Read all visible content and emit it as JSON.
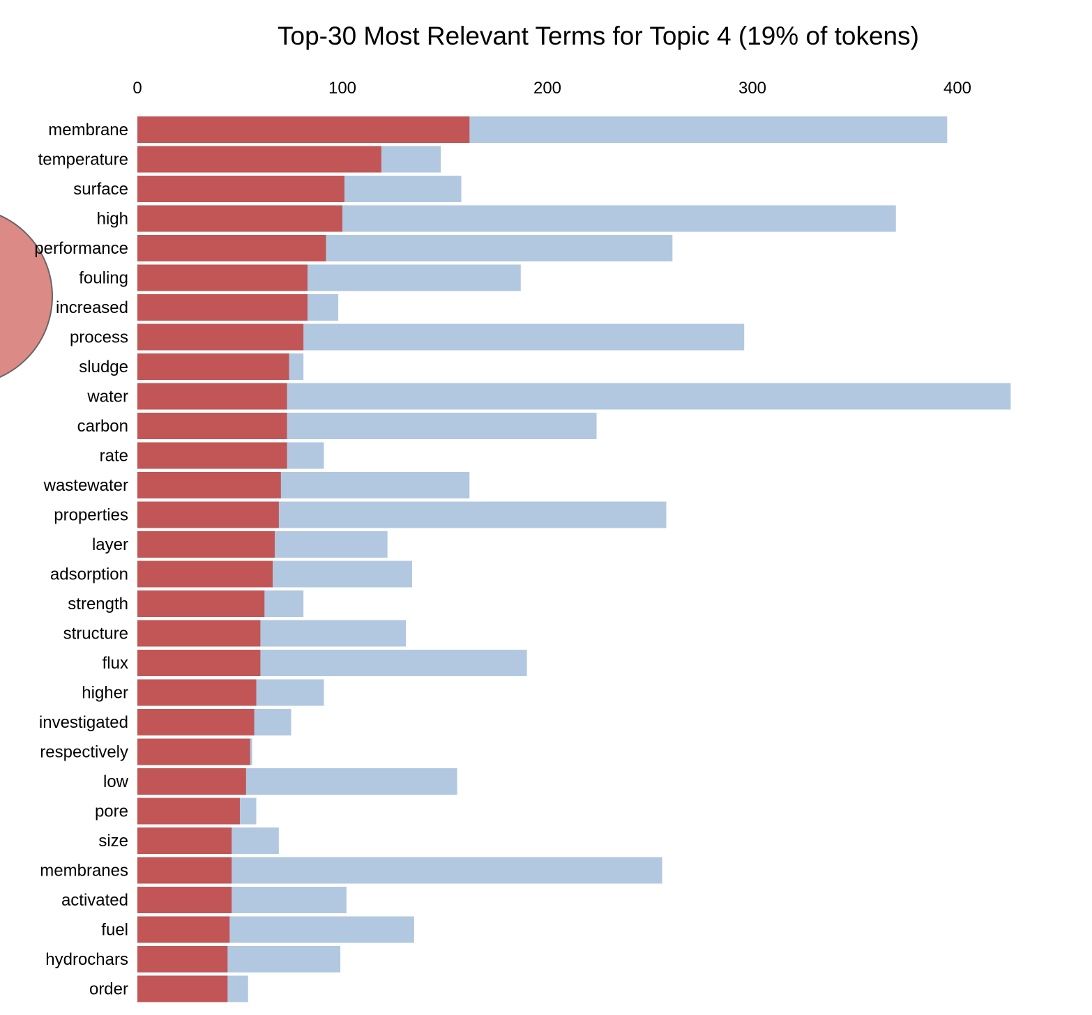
{
  "chart_data": {
    "type": "bar",
    "orientation": "horizontal",
    "stacking": "overlay",
    "title": "Top-30 Most Relevant Terms for Topic 4 (19% of tokens)",
    "xlim": [
      0,
      430
    ],
    "xticks": [
      0,
      100,
      200,
      300,
      400
    ],
    "xtick_labels": [
      "0",
      "100",
      "200",
      "300",
      "400"
    ],
    "x_axis_position": "top",
    "grid": false,
    "categories": [
      "membrane",
      "temperature",
      "surface",
      "high",
      "performance",
      "fouling",
      "increased",
      "process",
      "sludge",
      "water",
      "carbon",
      "rate",
      "wastewater",
      "properties",
      "layer",
      "adsorption",
      "strength",
      "structure",
      "flux",
      "higher",
      "investigated",
      "respectively",
      "low",
      "pore",
      "size",
      "membranes",
      "activated",
      "fuel",
      "hydrochars",
      "order"
    ],
    "series": [
      {
        "role": "overall",
        "color": "#b2c8e0",
        "values": [
          395,
          148,
          158,
          370,
          261,
          187,
          98,
          296,
          81,
          426,
          224,
          91,
          162,
          258,
          122,
          134,
          81,
          131,
          190,
          91,
          75,
          56,
          156,
          58,
          69,
          256,
          102,
          135,
          99,
          54
        ]
      },
      {
        "role": "topic",
        "color": "#c25656",
        "values": [
          162,
          119,
          101,
          100,
          92,
          83,
          83,
          81,
          74,
          73,
          73,
          73,
          70,
          69,
          67,
          66,
          62,
          60,
          60,
          58,
          57,
          55,
          53,
          50,
          46,
          46,
          46,
          45,
          44,
          44
        ]
      }
    ]
  },
  "decor": {
    "topic_circle_color": "#dc8a86",
    "topic_circle_stroke": "#666666"
  }
}
